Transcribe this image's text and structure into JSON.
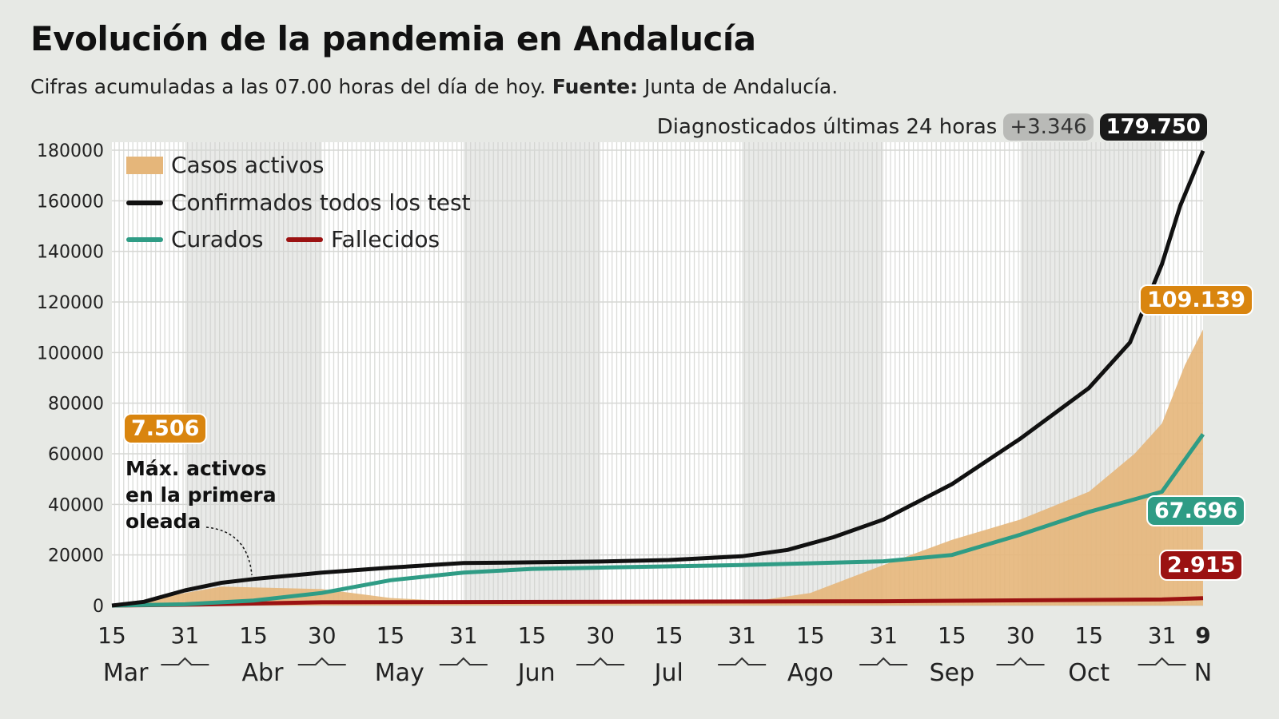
{
  "title": "Evolución de la pandemia en Andalucía",
  "subtitle": {
    "text": "Cifras acumuladas a las 07.00 horas del día de hoy.",
    "source_label": "Fuente:",
    "source": "Junta de Andalucía."
  },
  "header_stat": {
    "label": "Diagnosticados últimas 24 horas",
    "delta": "+3.346",
    "total": "179.750"
  },
  "annotation": {
    "value": "7.506",
    "text_lines": [
      "Máx. activos",
      "en la primera",
      "oleada"
    ]
  },
  "end_labels": {
    "activos": "109.139",
    "curados": "67.696",
    "fallecidos": "2.915"
  },
  "colors": {
    "activos": "#e5b67a",
    "confirmados": "#111111",
    "curados": "#2f9c85",
    "fallecidos": "#9b1212",
    "activos_label": "#d9850f"
  },
  "chart_data": {
    "type": "line",
    "title": "Evolución de la pandemia en Andalucía",
    "ylim": [
      0,
      180000
    ],
    "xlim": [
      "2020-03-15",
      "2020-11-09"
    ],
    "grid": true,
    "legend_placement": "top-left",
    "y_ticks": [
      "0",
      "20000",
      "40000",
      "60000",
      "80000",
      "100000",
      "120000",
      "140000",
      "160000",
      "180000"
    ],
    "x_ticks": [
      {
        "date": "2020-03-15",
        "label": "15"
      },
      {
        "date": "2020-03-31",
        "label": "31"
      },
      {
        "date": "2020-04-15",
        "label": "15"
      },
      {
        "date": "2020-04-30",
        "label": "30"
      },
      {
        "date": "2020-05-15",
        "label": "15"
      },
      {
        "date": "2020-05-31",
        "label": "31"
      },
      {
        "date": "2020-06-15",
        "label": "15"
      },
      {
        "date": "2020-06-30",
        "label": "30"
      },
      {
        "date": "2020-07-15",
        "label": "15"
      },
      {
        "date": "2020-07-31",
        "label": "31"
      },
      {
        "date": "2020-08-15",
        "label": "15"
      },
      {
        "date": "2020-08-31",
        "label": "31"
      },
      {
        "date": "2020-09-15",
        "label": "15"
      },
      {
        "date": "2020-09-30",
        "label": "30"
      },
      {
        "date": "2020-10-15",
        "label": "15"
      },
      {
        "date": "2020-10-31",
        "label": "31"
      },
      {
        "date": "2020-11-09",
        "label": "9"
      }
    ],
    "month_labels": [
      {
        "date": "2020-03-18",
        "label": "Mar"
      },
      {
        "date": "2020-04-17",
        "label": "Abr"
      },
      {
        "date": "2020-05-17",
        "label": "May"
      },
      {
        "date": "2020-06-16",
        "label": "Jun"
      },
      {
        "date": "2020-07-15",
        "label": "Jul"
      },
      {
        "date": "2020-08-15",
        "label": "Ago"
      },
      {
        "date": "2020-09-15",
        "label": "Sep"
      },
      {
        "date": "2020-10-15",
        "label": "Oct"
      },
      {
        "date": "2020-11-09",
        "label": "N"
      }
    ],
    "series": [
      {
        "name": "Casos activos",
        "kind": "area",
        "points": [
          [
            "2020-03-15",
            0
          ],
          [
            "2020-03-22",
            1500
          ],
          [
            "2020-03-31",
            5000
          ],
          [
            "2020-04-08",
            7506
          ],
          [
            "2020-04-30",
            6500
          ],
          [
            "2020-05-15",
            3000
          ],
          [
            "2020-05-31",
            1500
          ],
          [
            "2020-07-15",
            800
          ],
          [
            "2020-07-31",
            1000
          ],
          [
            "2020-08-15",
            5000
          ],
          [
            "2020-08-31",
            16000
          ],
          [
            "2020-09-15",
            26000
          ],
          [
            "2020-09-30",
            34000
          ],
          [
            "2020-10-15",
            45000
          ],
          [
            "2020-10-25",
            60000
          ],
          [
            "2020-10-31",
            72000
          ],
          [
            "2020-11-05",
            95000
          ],
          [
            "2020-11-09",
            109139
          ]
        ]
      },
      {
        "name": "Confirmados todos los test",
        "kind": "line",
        "points": [
          [
            "2020-03-15",
            0
          ],
          [
            "2020-03-22",
            1500
          ],
          [
            "2020-03-31",
            6000
          ],
          [
            "2020-04-08",
            9000
          ],
          [
            "2020-04-15",
            10500
          ],
          [
            "2020-04-30",
            13000
          ],
          [
            "2020-05-15",
            15000
          ],
          [
            "2020-05-31",
            16800
          ],
          [
            "2020-06-15",
            17100
          ],
          [
            "2020-06-30",
            17400
          ],
          [
            "2020-07-15",
            18000
          ],
          [
            "2020-07-31",
            19500
          ],
          [
            "2020-08-10",
            22000
          ],
          [
            "2020-08-20",
            27000
          ],
          [
            "2020-08-31",
            34000
          ],
          [
            "2020-09-15",
            48000
          ],
          [
            "2020-09-30",
            66000
          ],
          [
            "2020-10-15",
            86000
          ],
          [
            "2020-10-24",
            104000
          ],
          [
            "2020-10-31",
            135000
          ],
          [
            "2020-11-04",
            158000
          ],
          [
            "2020-11-09",
            179750
          ]
        ]
      },
      {
        "name": "Curados",
        "kind": "line",
        "points": [
          [
            "2020-03-15",
            0
          ],
          [
            "2020-03-31",
            500
          ],
          [
            "2020-04-15",
            2000
          ],
          [
            "2020-04-30",
            5000
          ],
          [
            "2020-05-15",
            10000
          ],
          [
            "2020-05-31",
            13000
          ],
          [
            "2020-06-15",
            14500
          ],
          [
            "2020-06-30",
            15000
          ],
          [
            "2020-07-31",
            16000
          ],
          [
            "2020-08-31",
            17500
          ],
          [
            "2020-09-15",
            20000
          ],
          [
            "2020-09-30",
            28000
          ],
          [
            "2020-10-15",
            37000
          ],
          [
            "2020-10-31",
            45000
          ],
          [
            "2020-11-09",
            67696
          ]
        ]
      },
      {
        "name": "Fallecidos",
        "kind": "line",
        "points": [
          [
            "2020-03-15",
            0
          ],
          [
            "2020-03-31",
            300
          ],
          [
            "2020-04-30",
            1300
          ],
          [
            "2020-05-31",
            1400
          ],
          [
            "2020-08-31",
            1700
          ],
          [
            "2020-10-31",
            2400
          ],
          [
            "2020-11-09",
            2915
          ]
        ]
      }
    ]
  }
}
